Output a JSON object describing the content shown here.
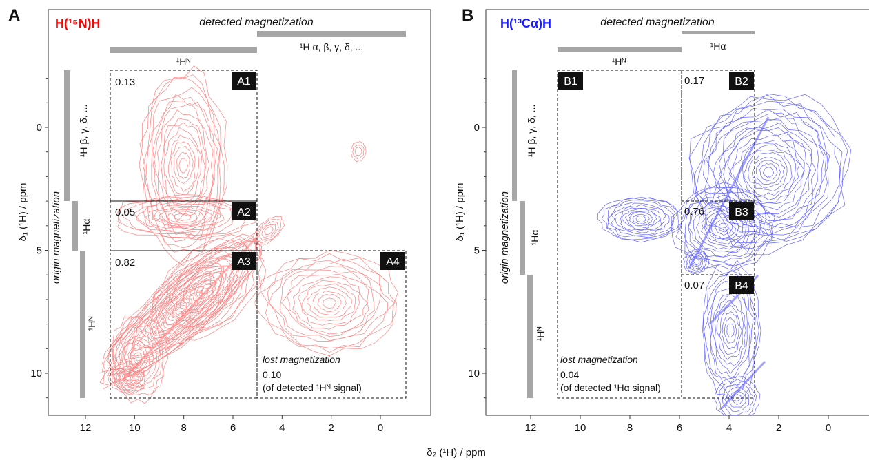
{
  "panels": [
    {
      "letter": "A",
      "title": "H(¹⁵N)H",
      "title_color": "#ff0000",
      "contour_color": "#ff8080",
      "detected_title": "detected magnetization",
      "detected_bands": [
        {
          "label": "¹Hᴺ",
          "x_from": 11,
          "x_to": 5
        },
        {
          "label": "¹H α, β, γ, δ, ...",
          "x_from": 5,
          "x_to": -1
        }
      ],
      "origin_title": "origin magnetization",
      "origin_bands": [
        {
          "label": "¹H β, γ, δ, ...",
          "y_from": -2.3,
          "y_to": 3
        },
        {
          "label": "¹Hα",
          "y_from": 3,
          "y_to": 5
        },
        {
          "label": "¹Hᴺ",
          "y_from": 5,
          "y_to": 11
        }
      ],
      "boxes": [
        {
          "id": "A1",
          "value": "0.13"
        },
        {
          "id": "A2",
          "value": "0.05"
        },
        {
          "id": "A3",
          "value": "0.82"
        },
        {
          "id": "A4",
          "value": ""
        }
      ],
      "lost_label": "lost magnetization",
      "lost_value": "0.10",
      "lost_note": "(of detected ¹Hᴺ signal)"
    },
    {
      "letter": "B",
      "title": "H(¹³Cα)H",
      "title_color": "#1a1aff",
      "contour_color": "#6464ff",
      "detected_title": "detected magnetization",
      "detected_bands": [
        {
          "label": "¹Hᴺ",
          "x_from": 11,
          "x_to": 6
        },
        {
          "label": "¹Hα",
          "x_from": 6,
          "x_to": 3
        }
      ],
      "origin_title": "origin magnetization",
      "origin_bands": [
        {
          "label": "¹H β, γ, δ, ...",
          "y_from": -2.3,
          "y_to": 3
        },
        {
          "label": "¹Hα",
          "y_from": 3,
          "y_to": 6
        },
        {
          "label": "¹Hᴺ",
          "y_from": 6,
          "y_to": 11
        }
      ],
      "boxes": [
        {
          "id": "B1",
          "value": ""
        },
        {
          "id": "B2",
          "value": "0.17"
        },
        {
          "id": "B3",
          "value": "0.76"
        },
        {
          "id": "B4",
          "value": "0.07"
        }
      ],
      "lost_label": "lost magnetization",
      "lost_value": "0.04",
      "lost_note": "(of detected ¹Hα signal)"
    }
  ],
  "axes": {
    "xlabel": "δ₂ (¹H) / ppm",
    "ylabel": "δ₁ (¹H) / ppm"
  },
  "chart_data": [
    {
      "type": "heatmap",
      "panel": "A",
      "x_ticks": [
        12,
        10,
        8,
        6,
        4,
        2,
        0
      ],
      "y_ticks": [
        0,
        5,
        10
      ],
      "xlim": [
        13.9,
        -1.9
      ],
      "ylim": [
        -4.7,
        11.6
      ],
      "x_inverted": true,
      "y_inverted": true,
      "regions": [
        {
          "id": "A1",
          "x_range": [
            11,
            5
          ],
          "y_range": [
            -2.3,
            3
          ],
          "fraction": 0.13
        },
        {
          "id": "A2",
          "x_range": [
            11,
            5
          ],
          "y_range": [
            3,
            5
          ],
          "fraction": 0.05
        },
        {
          "id": "A3",
          "x_range": [
            11,
            5
          ],
          "y_range": [
            5,
            11
          ],
          "fraction": 0.82
        },
        {
          "id": "A4",
          "x_range": [
            5,
            -1
          ],
          "y_range": [
            5,
            11
          ]
        }
      ],
      "lost_magnetization": 0.1
    },
    {
      "type": "heatmap",
      "panel": "B",
      "x_ticks": [
        12,
        10,
        8,
        6,
        4,
        2,
        0
      ],
      "y_ticks": [
        0,
        5,
        10
      ],
      "xlim": [
        13.9,
        -1.9
      ],
      "ylim": [
        -4.7,
        11.6
      ],
      "x_inverted": true,
      "y_inverted": true,
      "regions": [
        {
          "id": "B1",
          "x_range": [
            11,
            6
          ],
          "y_range": [
            -2.3,
            11
          ]
        },
        {
          "id": "B2",
          "x_range": [
            6,
            3
          ],
          "y_range": [
            -2.3,
            3
          ],
          "fraction": 0.17
        },
        {
          "id": "B3",
          "x_range": [
            6,
            3
          ],
          "y_range": [
            3,
            6
          ],
          "fraction": 0.76
        },
        {
          "id": "B4",
          "x_range": [
            6,
            3
          ],
          "y_range": [
            6,
            11
          ],
          "fraction": 0.07
        }
      ],
      "lost_magnetization": 0.04
    }
  ]
}
